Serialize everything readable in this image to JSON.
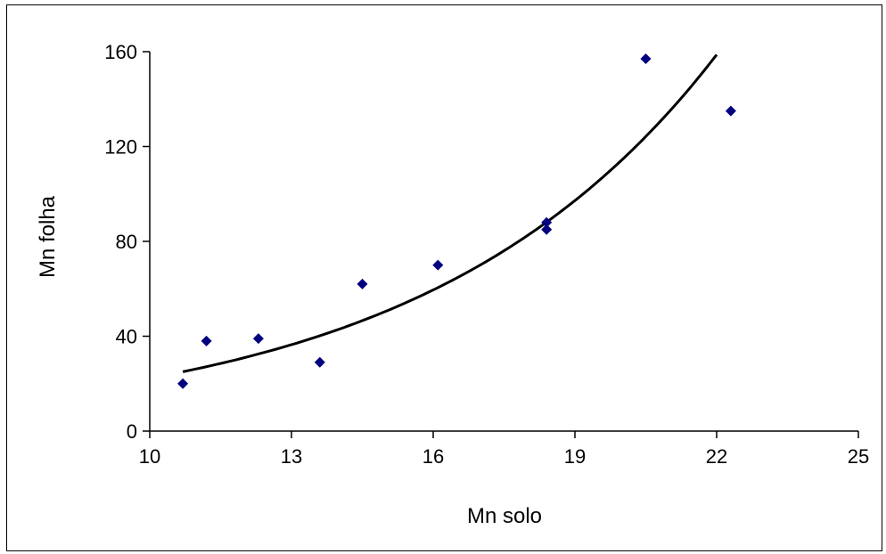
{
  "chart_data": {
    "type": "scatter",
    "title": "",
    "xlabel": "Mn solo",
    "ylabel": "Mn folha",
    "xlim": [
      10,
      25
    ],
    "ylim": [
      0,
      160
    ],
    "x_ticks": [
      "10",
      "13",
      "16",
      "19",
      "22",
      "25"
    ],
    "y_ticks": [
      "0",
      "40",
      "80",
      "120",
      "160"
    ],
    "grid": false,
    "legend": "none",
    "colors": {
      "marker": "#000080",
      "trendline": "#000000",
      "axis": "#000000"
    },
    "series": [
      {
        "marker": "diamond",
        "points": [
          {
            "x": 10.7,
            "y": 20
          },
          {
            "x": 11.2,
            "y": 38
          },
          {
            "x": 12.3,
            "y": 39
          },
          {
            "x": 13.6,
            "y": 29
          },
          {
            "x": 14.5,
            "y": 62
          },
          {
            "x": 16.1,
            "y": 70
          },
          {
            "x": 18.4,
            "y": 85
          },
          {
            "x": 18.4,
            "y": 88
          },
          {
            "x": 20.5,
            "y": 157
          },
          {
            "x": 22.3,
            "y": 135
          }
        ]
      }
    ],
    "trendline": {
      "type": "exponential",
      "x_start": 10.7,
      "x_end": 22.0,
      "a": 4.35,
      "b": 0.1635
    }
  }
}
